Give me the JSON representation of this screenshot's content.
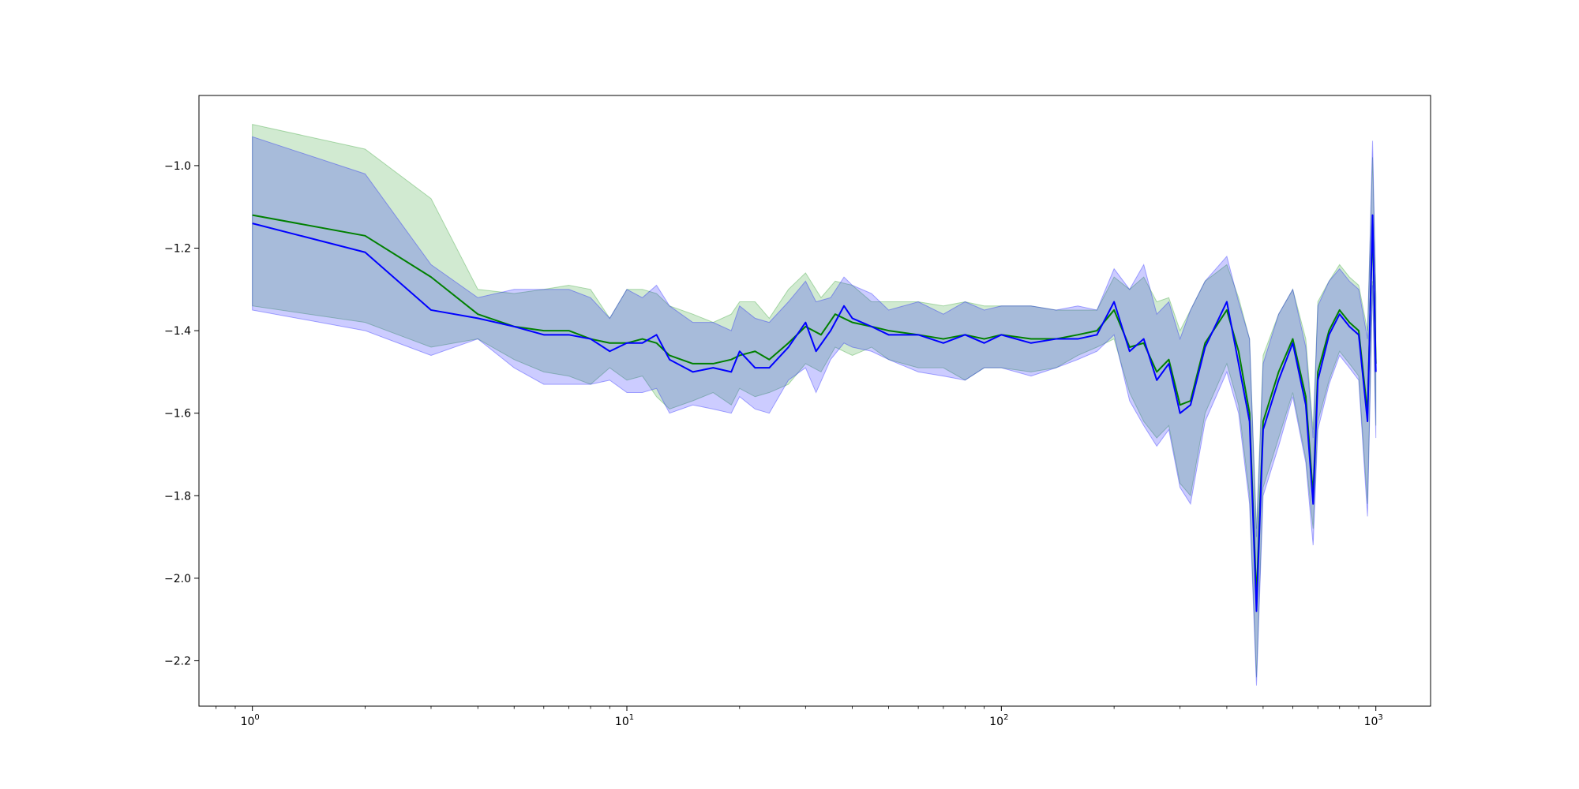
{
  "chart_data": {
    "type": "line",
    "title": "",
    "xlabel": "",
    "ylabel": "",
    "xscale": "log",
    "xlim": [
      0.72,
      1400
    ],
    "ylim": [
      -2.31,
      -0.83
    ],
    "grid": false,
    "legend": "none",
    "x_ticks": [
      {
        "base": "10",
        "exp": "0",
        "value": 1
      },
      {
        "base": "10",
        "exp": "1",
        "value": 10
      },
      {
        "base": "10",
        "exp": "2",
        "value": 100
      },
      {
        "base": "10",
        "exp": "3",
        "value": 1000
      }
    ],
    "y_ticks": [
      {
        "label": "−1.0",
        "value": -1.0
      },
      {
        "label": "−1.2",
        "value": -1.2
      },
      {
        "label": "−1.4",
        "value": -1.4
      },
      {
        "label": "−1.6",
        "value": -1.6
      },
      {
        "label": "−1.8",
        "value": -1.8
      },
      {
        "label": "−2.0",
        "value": -2.0
      },
      {
        "label": "−2.2",
        "value": -2.2
      }
    ],
    "series": [
      {
        "color": "#008000",
        "band_color": "#2ca02c",
        "band_opacity": 0.22,
        "points": [
          [
            1,
            -1.12,
            -1.34,
            -0.9
          ],
          [
            2,
            -1.17,
            -1.38,
            -0.96
          ],
          [
            3,
            -1.27,
            -1.44,
            -1.08
          ],
          [
            4,
            -1.36,
            -1.42,
            -1.3
          ],
          [
            5,
            -1.39,
            -1.47,
            -1.31
          ],
          [
            6,
            -1.4,
            -1.5,
            -1.3
          ],
          [
            7,
            -1.4,
            -1.51,
            -1.29
          ],
          [
            8,
            -1.42,
            -1.53,
            -1.3
          ],
          [
            9,
            -1.43,
            -1.49,
            -1.37
          ],
          [
            10,
            -1.43,
            -1.52,
            -1.3
          ],
          [
            11,
            -1.42,
            -1.51,
            -1.3
          ],
          [
            12,
            -1.43,
            -1.56,
            -1.31
          ],
          [
            13,
            -1.46,
            -1.59,
            -1.34
          ],
          [
            15,
            -1.48,
            -1.57,
            -1.36
          ],
          [
            17,
            -1.48,
            -1.55,
            -1.38
          ],
          [
            19,
            -1.47,
            -1.58,
            -1.36
          ],
          [
            20,
            -1.46,
            -1.54,
            -1.33
          ],
          [
            22,
            -1.45,
            -1.56,
            -1.33
          ],
          [
            24,
            -1.47,
            -1.55,
            -1.37
          ],
          [
            27,
            -1.43,
            -1.53,
            -1.3
          ],
          [
            30,
            -1.39,
            -1.48,
            -1.26
          ],
          [
            33,
            -1.41,
            -1.5,
            -1.32
          ],
          [
            36,
            -1.36,
            -1.44,
            -1.28
          ],
          [
            40,
            -1.38,
            -1.46,
            -1.29
          ],
          [
            45,
            -1.39,
            -1.44,
            -1.33
          ],
          [
            50,
            -1.4,
            -1.47,
            -1.33
          ],
          [
            60,
            -1.41,
            -1.49,
            -1.33
          ],
          [
            70,
            -1.42,
            -1.49,
            -1.34
          ],
          [
            80,
            -1.41,
            -1.52,
            -1.33
          ],
          [
            90,
            -1.42,
            -1.49,
            -1.34
          ],
          [
            100,
            -1.41,
            -1.49,
            -1.34
          ],
          [
            120,
            -1.42,
            -1.5,
            -1.34
          ],
          [
            140,
            -1.42,
            -1.49,
            -1.35
          ],
          [
            160,
            -1.41,
            -1.46,
            -1.35
          ],
          [
            180,
            -1.4,
            -1.44,
            -1.35
          ],
          [
            200,
            -1.35,
            -1.42,
            -1.27
          ],
          [
            220,
            -1.44,
            -1.55,
            -1.3
          ],
          [
            240,
            -1.43,
            -1.62,
            -1.27
          ],
          [
            260,
            -1.5,
            -1.66,
            -1.33
          ],
          [
            280,
            -1.47,
            -1.63,
            -1.32
          ],
          [
            300,
            -1.58,
            -1.77,
            -1.4
          ],
          [
            320,
            -1.57,
            -1.8,
            -1.35
          ],
          [
            350,
            -1.43,
            -1.6,
            -1.28
          ],
          [
            400,
            -1.35,
            -1.48,
            -1.24
          ],
          [
            430,
            -1.45,
            -1.58,
            -1.32
          ],
          [
            460,
            -1.6,
            -1.8,
            -1.42
          ],
          [
            480,
            -2.05,
            -2.24,
            -1.88
          ],
          [
            500,
            -1.62,
            -1.78,
            -1.46
          ],
          [
            550,
            -1.5,
            -1.66,
            -1.36
          ],
          [
            600,
            -1.42,
            -1.55,
            -1.3
          ],
          [
            650,
            -1.56,
            -1.71,
            -1.42
          ],
          [
            680,
            -1.8,
            -1.88,
            -1.64
          ],
          [
            700,
            -1.5,
            -1.62,
            -1.33
          ],
          [
            750,
            -1.4,
            -1.52,
            -1.28
          ],
          [
            800,
            -1.35,
            -1.45,
            -1.24
          ],
          [
            850,
            -1.38,
            -1.48,
            -1.27
          ],
          [
            900,
            -1.4,
            -1.51,
            -1.29
          ],
          [
            950,
            -1.6,
            -1.82,
            -1.4
          ],
          [
            980,
            -1.14,
            -1.28,
            -0.98
          ],
          [
            1000,
            -1.48,
            -1.63,
            -1.31
          ]
        ]
      },
      {
        "color": "#0000ff",
        "band_color": "#0000ff",
        "band_opacity": 0.2,
        "points": [
          [
            1,
            -1.14,
            -1.35,
            -0.93
          ],
          [
            2,
            -1.21,
            -1.4,
            -1.02
          ],
          [
            3,
            -1.35,
            -1.46,
            -1.24
          ],
          [
            4,
            -1.37,
            -1.42,
            -1.32
          ],
          [
            5,
            -1.39,
            -1.49,
            -1.3
          ],
          [
            6,
            -1.41,
            -1.53,
            -1.3
          ],
          [
            7,
            -1.41,
            -1.53,
            -1.3
          ],
          [
            8,
            -1.42,
            -1.53,
            -1.32
          ],
          [
            9,
            -1.45,
            -1.52,
            -1.37
          ],
          [
            10,
            -1.43,
            -1.55,
            -1.3
          ],
          [
            11,
            -1.43,
            -1.55,
            -1.32
          ],
          [
            12,
            -1.41,
            -1.54,
            -1.29
          ],
          [
            13,
            -1.47,
            -1.6,
            -1.34
          ],
          [
            15,
            -1.5,
            -1.58,
            -1.38
          ],
          [
            17,
            -1.49,
            -1.59,
            -1.38
          ],
          [
            19,
            -1.5,
            -1.6,
            -1.4
          ],
          [
            20,
            -1.45,
            -1.56,
            -1.34
          ],
          [
            22,
            -1.49,
            -1.59,
            -1.37
          ],
          [
            24,
            -1.49,
            -1.6,
            -1.38
          ],
          [
            27,
            -1.44,
            -1.52,
            -1.33
          ],
          [
            30,
            -1.38,
            -1.49,
            -1.28
          ],
          [
            32,
            -1.45,
            -1.55,
            -1.33
          ],
          [
            35,
            -1.4,
            -1.47,
            -1.32
          ],
          [
            38,
            -1.34,
            -1.43,
            -1.27
          ],
          [
            40,
            -1.37,
            -1.44,
            -1.29
          ],
          [
            45,
            -1.39,
            -1.45,
            -1.31
          ],
          [
            50,
            -1.41,
            -1.47,
            -1.35
          ],
          [
            60,
            -1.41,
            -1.5,
            -1.33
          ],
          [
            70,
            -1.43,
            -1.51,
            -1.36
          ],
          [
            80,
            -1.41,
            -1.52,
            -1.33
          ],
          [
            90,
            -1.43,
            -1.49,
            -1.35
          ],
          [
            100,
            -1.41,
            -1.49,
            -1.34
          ],
          [
            120,
            -1.43,
            -1.51,
            -1.34
          ],
          [
            140,
            -1.42,
            -1.49,
            -1.35
          ],
          [
            160,
            -1.42,
            -1.47,
            -1.34
          ],
          [
            180,
            -1.41,
            -1.45,
            -1.35
          ],
          [
            200,
            -1.33,
            -1.41,
            -1.25
          ],
          [
            220,
            -1.45,
            -1.57,
            -1.3
          ],
          [
            240,
            -1.42,
            -1.63,
            -1.24
          ],
          [
            260,
            -1.52,
            -1.68,
            -1.36
          ],
          [
            280,
            -1.48,
            -1.64,
            -1.33
          ],
          [
            300,
            -1.6,
            -1.78,
            -1.42
          ],
          [
            320,
            -1.58,
            -1.82,
            -1.35
          ],
          [
            350,
            -1.44,
            -1.62,
            -1.28
          ],
          [
            400,
            -1.33,
            -1.5,
            -1.22
          ],
          [
            430,
            -1.48,
            -1.6,
            -1.33
          ],
          [
            460,
            -1.62,
            -1.82,
            -1.42
          ],
          [
            480,
            -2.08,
            -2.26,
            -1.9
          ],
          [
            500,
            -1.64,
            -1.8,
            -1.48
          ],
          [
            550,
            -1.52,
            -1.68,
            -1.36
          ],
          [
            600,
            -1.43,
            -1.56,
            -1.3
          ],
          [
            650,
            -1.58,
            -1.72,
            -1.44
          ],
          [
            680,
            -1.82,
            -1.92,
            -1.66
          ],
          [
            700,
            -1.52,
            -1.64,
            -1.34
          ],
          [
            750,
            -1.41,
            -1.53,
            -1.28
          ],
          [
            800,
            -1.36,
            -1.46,
            -1.25
          ],
          [
            850,
            -1.39,
            -1.49,
            -1.28
          ],
          [
            900,
            -1.41,
            -1.52,
            -1.3
          ],
          [
            950,
            -1.62,
            -1.85,
            -1.42
          ],
          [
            980,
            -1.12,
            -1.29,
            -0.94
          ],
          [
            1000,
            -1.5,
            -1.66,
            -1.32
          ]
        ]
      }
    ]
  }
}
